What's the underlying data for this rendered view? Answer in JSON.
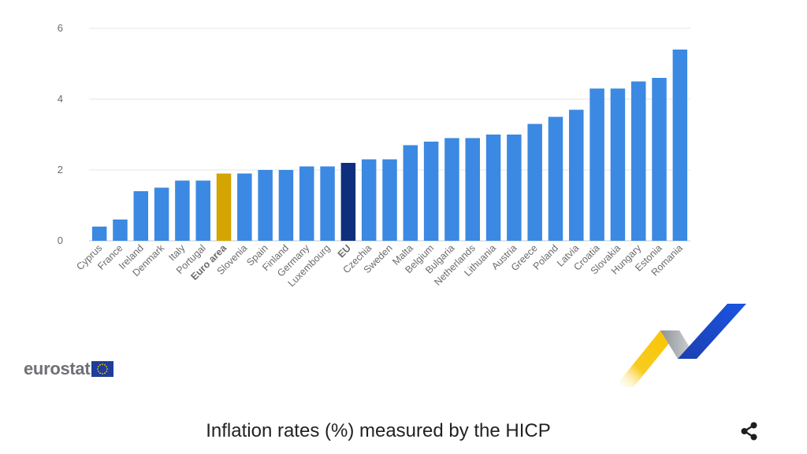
{
  "chart_data": {
    "type": "bar",
    "categories": [
      "Cyprus",
      "France",
      "Ireland",
      "Denmark",
      "Italy",
      "Portugal",
      "Euro area",
      "Slovenia",
      "Spain",
      "Finland",
      "Germany",
      "Luxembourg",
      "EU",
      "Czechia",
      "Sweden",
      "Malta",
      "Belgium",
      "Bulgaria",
      "Netherlands",
      "Lithuania",
      "Austria",
      "Greece",
      "Poland",
      "Latvia",
      "Croatia",
      "Slovakia",
      "Hungary",
      "Estonia",
      "Romania"
    ],
    "values": [
      0.4,
      0.6,
      1.4,
      1.5,
      1.7,
      1.7,
      1.9,
      1.9,
      2.0,
      2.0,
      2.1,
      2.1,
      2.2,
      2.3,
      2.3,
      2.7,
      2.8,
      2.9,
      2.9,
      3.0,
      3.0,
      3.3,
      3.5,
      3.7,
      4.3,
      4.3,
      4.5,
      4.6,
      5.4
    ],
    "highlight": {
      "Euro area": "#d4a400",
      "EU": "#0e2f7e"
    },
    "bold_categories": [
      "Euro area",
      "EU"
    ],
    "bar_color": "#3b89e2",
    "yticks": [
      0,
      2,
      4,
      6
    ],
    "ylim": [
      0,
      6
    ],
    "grid": true,
    "title": "Inflation rates (%) measured by the HICP"
  },
  "branding": {
    "logo_text": "eurostat",
    "flag_icon": "eu-flag-icon",
    "flag_color": "#1f3d99",
    "decoration_icon": "eurostat-swoosh-icon",
    "deco_colors": {
      "yellow": "#f8c400",
      "grey": "#c0c0c0",
      "blue": "#1a45c9"
    }
  },
  "actions": {
    "share_icon": "share-icon"
  }
}
